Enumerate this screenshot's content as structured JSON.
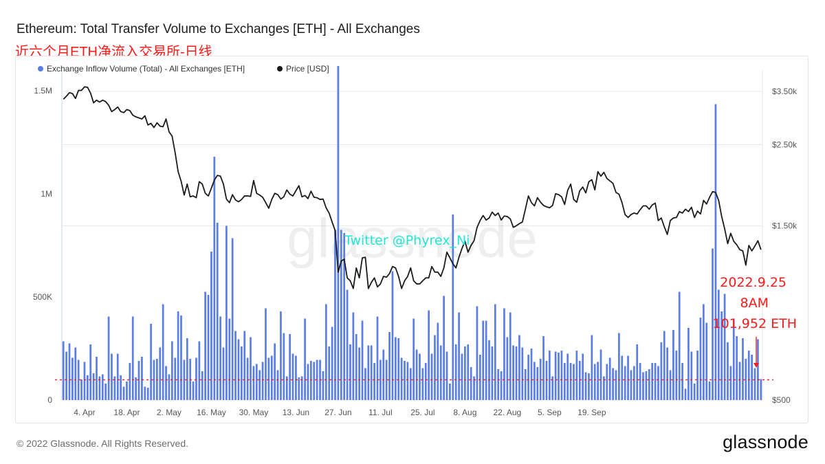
{
  "header": {
    "title": "Ethereum: Total Transfer Volume to Exchanges [ETH] - All Exchanges",
    "subtitle": "近六个月ETH净流入交易所-日线"
  },
  "footer": {
    "copyright": "© 2022 Glassnode. All Rights Reserved.",
    "logo": "glassnode"
  },
  "watermark": {
    "logo": "glassnode",
    "twitter": "Twitter @Phyrex_Ni"
  },
  "annotation": {
    "lines": [
      "2022.9.25",
      "8AM",
      "101,952 ETH"
    ],
    "color": "#ff1a1a",
    "reference_line_value": 101952
  },
  "colors": {
    "bars": "#5b7ee5",
    "price": "#1a1a1a",
    "grid": "#e6e6e6",
    "annotation": "#ff1a1a",
    "twitter": "#22e6d2"
  },
  "chart_data": {
    "type": "bar",
    "title": "Ethereum: Total Transfer Volume to Exchanges [ETH] - All Exchanges",
    "x": {
      "start_date": "2022-03-28",
      "end_date": "2022-09-25",
      "tick_labels": [
        "4. Apr",
        "18. Apr",
        "2. May",
        "16. May",
        "30. May",
        "13. Jun",
        "27. Jun",
        "11. Jul",
        "25. Jul",
        "8. Aug",
        "22. Aug",
        "5. Sep",
        "19. Sep"
      ],
      "tick_dates": [
        "2022-04-04",
        "2022-04-18",
        "2022-05-02",
        "2022-05-16",
        "2022-05-30",
        "2022-06-13",
        "2022-06-27",
        "2022-07-11",
        "2022-07-25",
        "2022-08-08",
        "2022-08-22",
        "2022-09-05",
        "2022-09-19"
      ]
    },
    "y_left": {
      "min": 0,
      "max": 1600000,
      "ticks": [
        0,
        500000,
        1000000,
        1500000
      ],
      "tick_labels": [
        "0",
        "500K",
        "1M",
        "1.5M"
      ]
    },
    "y_right": {
      "min": 500,
      "max": 4000,
      "scale": "log",
      "ticks": [
        500,
        1500,
        2500,
        3500
      ],
      "tick_labels": [
        "$500",
        "$1.50k",
        "$2.50k",
        "$3.50k"
      ]
    },
    "grid": true,
    "legend_position": "top-left",
    "series": [
      {
        "name": "Exchange Inflow Volume (Total) - All Exchanges [ETH]",
        "type": "bar",
        "axis": "left",
        "color": "#5b7ee5",
        "values": [
          285000,
          235000,
          275000,
          205000,
          255000,
          195000,
          100000,
          185000,
          120000,
          270000,
          130000,
          210000,
          115000,
          125000,
          80000,
          405000,
          225000,
          115000,
          225000,
          120000,
          65000,
          90000,
          180000,
          405000,
          110000,
          190000,
          210000,
          65000,
          60000,
          370000,
          195000,
          200000,
          255000,
          465000,
          165000,
          125000,
          285000,
          205000,
          430000,
          410000,
          195000,
          300000,
          200000,
          90000,
          205000,
          285000,
          140000,
          525000,
          510000,
          720000,
          1180000,
          860000,
          405000,
          255000,
          845000,
          395000,
          785000,
          335000,
          295000,
          260000,
          335000,
          205000,
          305000,
          165000,
          175000,
          145000,
          185000,
          445000,
          205000,
          215000,
          275000,
          145000,
          430000,
          325000,
          115000,
          320000,
          225000,
          215000,
          110000,
          115000,
          395000,
          175000,
          190000,
          185000,
          195000,
          195000,
          140000,
          465000,
          260000,
          355000,
          825000,
          1620000,
          825000,
          810000,
          535000,
          270000,
          425000,
          320000,
          255000,
          385000,
          155000,
          265000,
          265000,
          180000,
          405000,
          195000,
          245000,
          195000,
          330000,
          625000,
          305000,
          300000,
          205000,
          190000,
          185000,
          155000,
          395000,
          245000,
          225000,
          155000,
          180000,
          435000,
          225000,
          315000,
          375000,
          265000,
          505000,
          235000,
          80000,
          900000,
          270000,
          425000,
          225000,
          260000,
          270000,
          160000,
          115000,
          455000,
          220000,
          385000,
          385000,
          290000,
          260000,
          465000,
          150000,
          140000,
          445000,
          305000,
          425000,
          265000,
          260000,
          315000,
          255000,
          150000,
          220000,
          250000,
          185000,
          160000,
          200000,
          310000,
          190000,
          240000,
          115000,
          235000,
          230000,
          240000,
          180000,
          225000,
          180000,
          175000,
          240000,
          190000,
          225000,
          135000,
          130000,
          315000,
          175000,
          185000,
          245000,
          115000,
          175000,
          205000,
          155000,
          145000,
          325000,
          215000,
          165000,
          215000,
          145000,
          165000,
          270000,
          180000,
          135000,
          140000,
          150000,
          180000,
          180000,
          165000,
          280000,
          335000,
          255000,
          145000,
          340000,
          240000,
          525000,
          180000,
          55000,
          350000,
          235000,
          80000,
          240000,
          400000,
          465000,
          375000,
          90000,
          735000,
          1435000,
          535000,
          430000,
          515000,
          280000,
          165000,
          395000,
          310000,
          185000,
          300000,
          200000,
          240000,
          220000,
          155000,
          295000,
          101952
        ]
      },
      {
        "name": "Price [USD]",
        "type": "line",
        "axis": "right",
        "color": "#1a1a1a",
        "values": [
          3330,
          3395,
          3470,
          3450,
          3345,
          3520,
          3520,
          3600,
          3590,
          3460,
          3255,
          3310,
          3270,
          3310,
          3280,
          3205,
          3080,
          3120,
          3170,
          3080,
          3060,
          3120,
          3100,
          3010,
          2980,
          2960,
          2940,
          3000,
          2830,
          2860,
          2785,
          2870,
          2810,
          2800,
          2940,
          2710,
          2640,
          2380,
          2110,
          1985,
          1820,
          1950,
          1800,
          1810,
          1790,
          1980,
          1950,
          1840,
          1810,
          1900,
          2000,
          2060,
          2050,
          1950,
          1775,
          1735,
          1825,
          1765,
          1745,
          1770,
          1810,
          1810,
          1805,
          1995,
          1840,
          1820,
          1795,
          1735,
          1675,
          1770,
          1840,
          1825,
          1775,
          1800,
          1880,
          1830,
          1810,
          1870,
          1930,
          1800,
          1815,
          1780,
          1865,
          1795,
          1790,
          1770,
          1775,
          1680,
          1625,
          1535,
          1455,
          1120,
          1200,
          1215,
          1080,
          1060,
          1010,
          1150,
          1080,
          1225,
          1230,
          1010,
          1050,
          1080,
          1020,
          1040,
          1090,
          1085,
          1110,
          1160,
          1150,
          1090,
          1010,
          1060,
          1090,
          1150,
          1060,
          1040,
          1040,
          1060,
          1080,
          1080,
          1160,
          1120,
          1120,
          1090,
          1150,
          1270,
          1225,
          1180,
          1150,
          1230,
          1300,
          1360,
          1270,
          1325,
          1365,
          1485,
          1550,
          1600,
          1555,
          1575,
          1635,
          1600,
          1625,
          1555,
          1595,
          1590,
          1565,
          1485,
          1500,
          1520,
          1535,
          1665,
          1810,
          1735,
          1700,
          1790,
          1740,
          1705,
          1690,
          1680,
          1705,
          1835,
          1825,
          1800,
          1715,
          1875,
          1950,
          1770,
          1740,
          1870,
          1915,
          1845,
          1980,
          2005,
          1880,
          2110,
          2050,
          2100,
          2020,
          1990,
          1960,
          1850,
          1830,
          1735,
          1610,
          1580,
          1610,
          1625,
          1615,
          1660,
          1700,
          1700,
          1665,
          1710,
          1730,
          1550,
          1575,
          1490,
          1420,
          1550,
          1575,
          1580,
          1640,
          1625,
          1665,
          1640,
          1685,
          1580,
          1645,
          1615,
          1760,
          1720,
          1795,
          1860,
          1850,
          1760,
          1590,
          1470,
          1340,
          1430,
          1360,
          1330,
          1290,
          1280,
          1170,
          1325,
          1280,
          1320,
          1365,
          1290
        ]
      }
    ]
  }
}
